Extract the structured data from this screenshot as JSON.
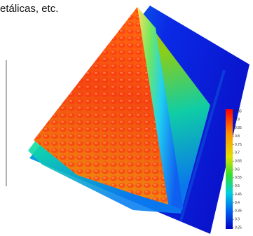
{
  "caption": "etálicas, etc.",
  "colorbar": {
    "labels": [
      "0.95",
      "0.9",
      "0.85",
      "0.8",
      "0.75",
      "0.7",
      "0.65",
      "0.6",
      "0.55",
      "0.5",
      "0.45",
      "0.4",
      "0.35",
      "0.3",
      "0.25"
    ]
  }
}
